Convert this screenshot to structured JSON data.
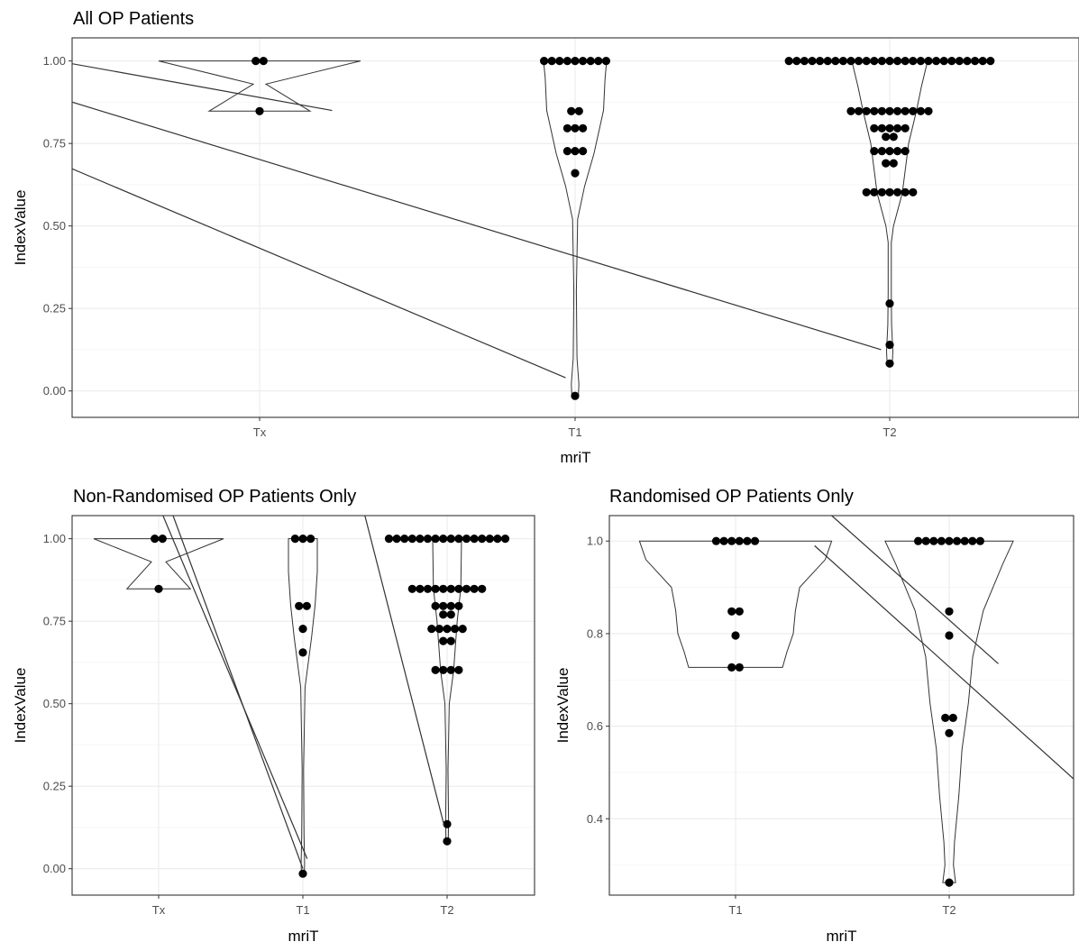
{
  "chart_data": [
    {
      "type": "violin",
      "title": "All OP Patients",
      "xlabel": "mriT",
      "ylabel": "IndexValue",
      "categories": [
        "Tx",
        "T1",
        "T2"
      ],
      "yticks": [
        "0.00",
        "0.25",
        "0.50",
        "0.75",
        "1.00"
      ],
      "ylim": [
        -0.08,
        1.07
      ],
      "grid": true,
      "violins": [
        {
          "category": "Tx",
          "min": 0.848,
          "max": 1.0,
          "bulges": [
            [
              1.0,
              0.32
            ],
            [
              0.93,
              0.02
            ],
            [
              0.848,
              0.16
            ]
          ]
        },
        {
          "category": "T1",
          "min": -0.02,
          "max": 1.0,
          "bulges": [
            [
              1.0,
              0.1
            ],
            [
              0.95,
              0.095
            ],
            [
              0.85,
              0.09
            ],
            [
              0.72,
              0.06
            ],
            [
              0.62,
              0.03
            ],
            [
              0.52,
              0.008
            ],
            [
              0.3,
              0.004
            ],
            [
              0.1,
              0.006
            ],
            [
              0.02,
              0.012
            ],
            [
              -0.02,
              0.01
            ]
          ]
        },
        {
          "category": "T2",
          "min": 0.08,
          "max": 1.0,
          "bulges": [
            [
              1.0,
              0.12
            ],
            [
              0.92,
              0.1
            ],
            [
              0.85,
              0.085
            ],
            [
              0.75,
              0.06
            ],
            [
              0.6,
              0.04
            ],
            [
              0.5,
              0.012
            ],
            [
              0.45,
              0.005
            ],
            [
              0.3,
              0.005
            ],
            [
              0.2,
              0.006
            ],
            [
              0.12,
              0.01
            ],
            [
              0.08,
              0.008
            ]
          ]
        }
      ],
      "points": [
        {
          "category": "Tx",
          "y": 1.0,
          "count": 2
        },
        {
          "category": "Tx",
          "y": 0.848,
          "count": 1
        },
        {
          "category": "T1",
          "y": 1.0,
          "count": 9
        },
        {
          "category": "T1",
          "y": 0.848,
          "count": 2
        },
        {
          "category": "T1",
          "y": 0.796,
          "count": 3
        },
        {
          "category": "T1",
          "y": 0.727,
          "count": 3
        },
        {
          "category": "T1",
          "y": 0.66,
          "count": 1
        },
        {
          "category": "T1",
          "y": -0.015,
          "count": 1
        },
        {
          "category": "T2",
          "y": 1.0,
          "count": 27
        },
        {
          "category": "T2",
          "y": 0.848,
          "count": 11
        },
        {
          "category": "T2",
          "y": 0.796,
          "count": 5
        },
        {
          "category": "T2",
          "y": 0.77,
          "count": 2
        },
        {
          "category": "T2",
          "y": 0.727,
          "count": 5
        },
        {
          "category": "T2",
          "y": 0.69,
          "count": 2
        },
        {
          "category": "T2",
          "y": 0.602,
          "count": 7
        },
        {
          "category": "T2",
          "y": 0.265,
          "count": 1
        },
        {
          "category": "T2",
          "y": 0.14,
          "count": 1
        },
        {
          "category": "T2",
          "y": 0.083,
          "count": 1
        }
      ],
      "lines": [
        [
          [
            -1.55,
            1.06
          ],
          [
            0.97,
            0.04
          ]
        ],
        [
          [
            -1.26,
            1.07
          ],
          [
            1.97,
            0.125
          ]
        ],
        [
          [
            -1.05,
            1.07
          ],
          [
            0.23,
            0.85
          ]
        ]
      ]
    },
    {
      "type": "violin",
      "title": "Non-Randomised OP Patients Only",
      "xlabel": "mriT",
      "ylabel": "IndexValue",
      "categories": [
        "Tx",
        "T1",
        "T2"
      ],
      "yticks": [
        "0.00",
        "0.25",
        "0.50",
        "0.75",
        "1.00"
      ],
      "ylim": [
        -0.08,
        1.07
      ],
      "grid": true,
      "violins": [
        {
          "category": "Tx",
          "min": 0.848,
          "max": 1.0,
          "bulges": [
            [
              1.0,
              0.45
            ],
            [
              0.93,
              0.05
            ],
            [
              0.848,
              0.22
            ]
          ]
        },
        {
          "category": "T1",
          "min": -0.02,
          "max": 1.0,
          "bulges": [
            [
              1.0,
              0.1
            ],
            [
              0.9,
              0.1
            ],
            [
              0.8,
              0.085
            ],
            [
              0.7,
              0.06
            ],
            [
              0.55,
              0.015
            ],
            [
              0.3,
              0.005
            ],
            [
              0.1,
              0.008
            ],
            [
              0.02,
              0.012
            ],
            [
              -0.02,
              0.01
            ]
          ]
        },
        {
          "category": "T2",
          "min": 0.08,
          "max": 1.0,
          "bulges": [
            [
              1.0,
              0.1
            ],
            [
              0.85,
              0.095
            ],
            [
              0.75,
              0.07
            ],
            [
              0.6,
              0.045
            ],
            [
              0.5,
              0.015
            ],
            [
              0.3,
              0.006
            ],
            [
              0.15,
              0.01
            ],
            [
              0.08,
              0.008
            ]
          ]
        }
      ],
      "points": [
        {
          "category": "Tx",
          "y": 1.0,
          "count": 2
        },
        {
          "category": "Tx",
          "y": 0.848,
          "count": 1
        },
        {
          "category": "T1",
          "y": 1.0,
          "count": 3
        },
        {
          "category": "T1",
          "y": 0.796,
          "count": 2
        },
        {
          "category": "T1",
          "y": 0.727,
          "count": 1
        },
        {
          "category": "T1",
          "y": 0.655,
          "count": 1
        },
        {
          "category": "T1",
          "y": -0.015,
          "count": 1
        },
        {
          "category": "T2",
          "y": 1.0,
          "count": 16
        },
        {
          "category": "T2",
          "y": 0.848,
          "count": 10
        },
        {
          "category": "T2",
          "y": 0.796,
          "count": 4
        },
        {
          "category": "T2",
          "y": 0.77,
          "count": 2
        },
        {
          "category": "T2",
          "y": 0.727,
          "count": 5
        },
        {
          "category": "T2",
          "y": 0.69,
          "count": 2
        },
        {
          "category": "T2",
          "y": 0.602,
          "count": 4
        },
        {
          "category": "T2",
          "y": 0.135,
          "count": 1
        },
        {
          "category": "T2",
          "y": 0.083,
          "count": 1
        }
      ],
      "lines": [
        [
          [
            0.03,
            1.07
          ],
          [
            1.03,
            0.03
          ]
        ],
        [
          [
            0.1,
            1.07
          ],
          [
            1.0,
            0.0
          ]
        ],
        [
          [
            1.43,
            1.07
          ],
          [
            1.98,
            0.13
          ]
        ]
      ]
    },
    {
      "type": "violin",
      "title": "Randomised OP Patients Only",
      "xlabel": "mriT",
      "ylabel": "IndexValue",
      "categories": [
        "T1",
        "T2"
      ],
      "yticks": [
        "0.4",
        "0.6",
        "0.8",
        "1.0"
      ],
      "ylim": [
        0.235,
        1.055
      ],
      "grid": true,
      "violins": [
        {
          "category": "T1",
          "min": 0.727,
          "max": 1.0,
          "bulges": [
            [
              1.0,
              0.45
            ],
            [
              0.96,
              0.42
            ],
            [
              0.9,
              0.3
            ],
            [
              0.85,
              0.28
            ],
            [
              0.8,
              0.27
            ],
            [
              0.76,
              0.24
            ],
            [
              0.727,
              0.22
            ]
          ]
        },
        {
          "category": "T2",
          "min": 0.262,
          "max": 1.0,
          "bulges": [
            [
              1.0,
              0.3
            ],
            [
              0.95,
              0.25
            ],
            [
              0.85,
              0.16
            ],
            [
              0.75,
              0.11
            ],
            [
              0.65,
              0.09
            ],
            [
              0.55,
              0.06
            ],
            [
              0.45,
              0.045
            ],
            [
              0.35,
              0.025
            ],
            [
              0.3,
              0.02
            ],
            [
              0.262,
              0.03
            ]
          ]
        }
      ],
      "points": [
        {
          "category": "T1",
          "y": 1.0,
          "count": 6
        },
        {
          "category": "T1",
          "y": 0.848,
          "count": 2
        },
        {
          "category": "T1",
          "y": 0.796,
          "count": 1
        },
        {
          "category": "T1",
          "y": 0.727,
          "count": 2
        },
        {
          "category": "T2",
          "y": 1.0,
          "count": 9
        },
        {
          "category": "T2",
          "y": 0.848,
          "count": 1
        },
        {
          "category": "T2",
          "y": 0.796,
          "count": 1
        },
        {
          "category": "T2",
          "y": 0.618,
          "count": 2
        },
        {
          "category": "T2",
          "y": 0.585,
          "count": 1
        },
        {
          "category": "T2",
          "y": 0.262,
          "count": 1
        }
      ],
      "lines": [
        [
          [
            0.37,
            0.99
          ],
          [
            2.03,
            0.3
          ]
        ],
        [
          [
            0.45,
            1.055
          ],
          [
            1.23,
            0.735
          ]
        ]
      ]
    }
  ]
}
